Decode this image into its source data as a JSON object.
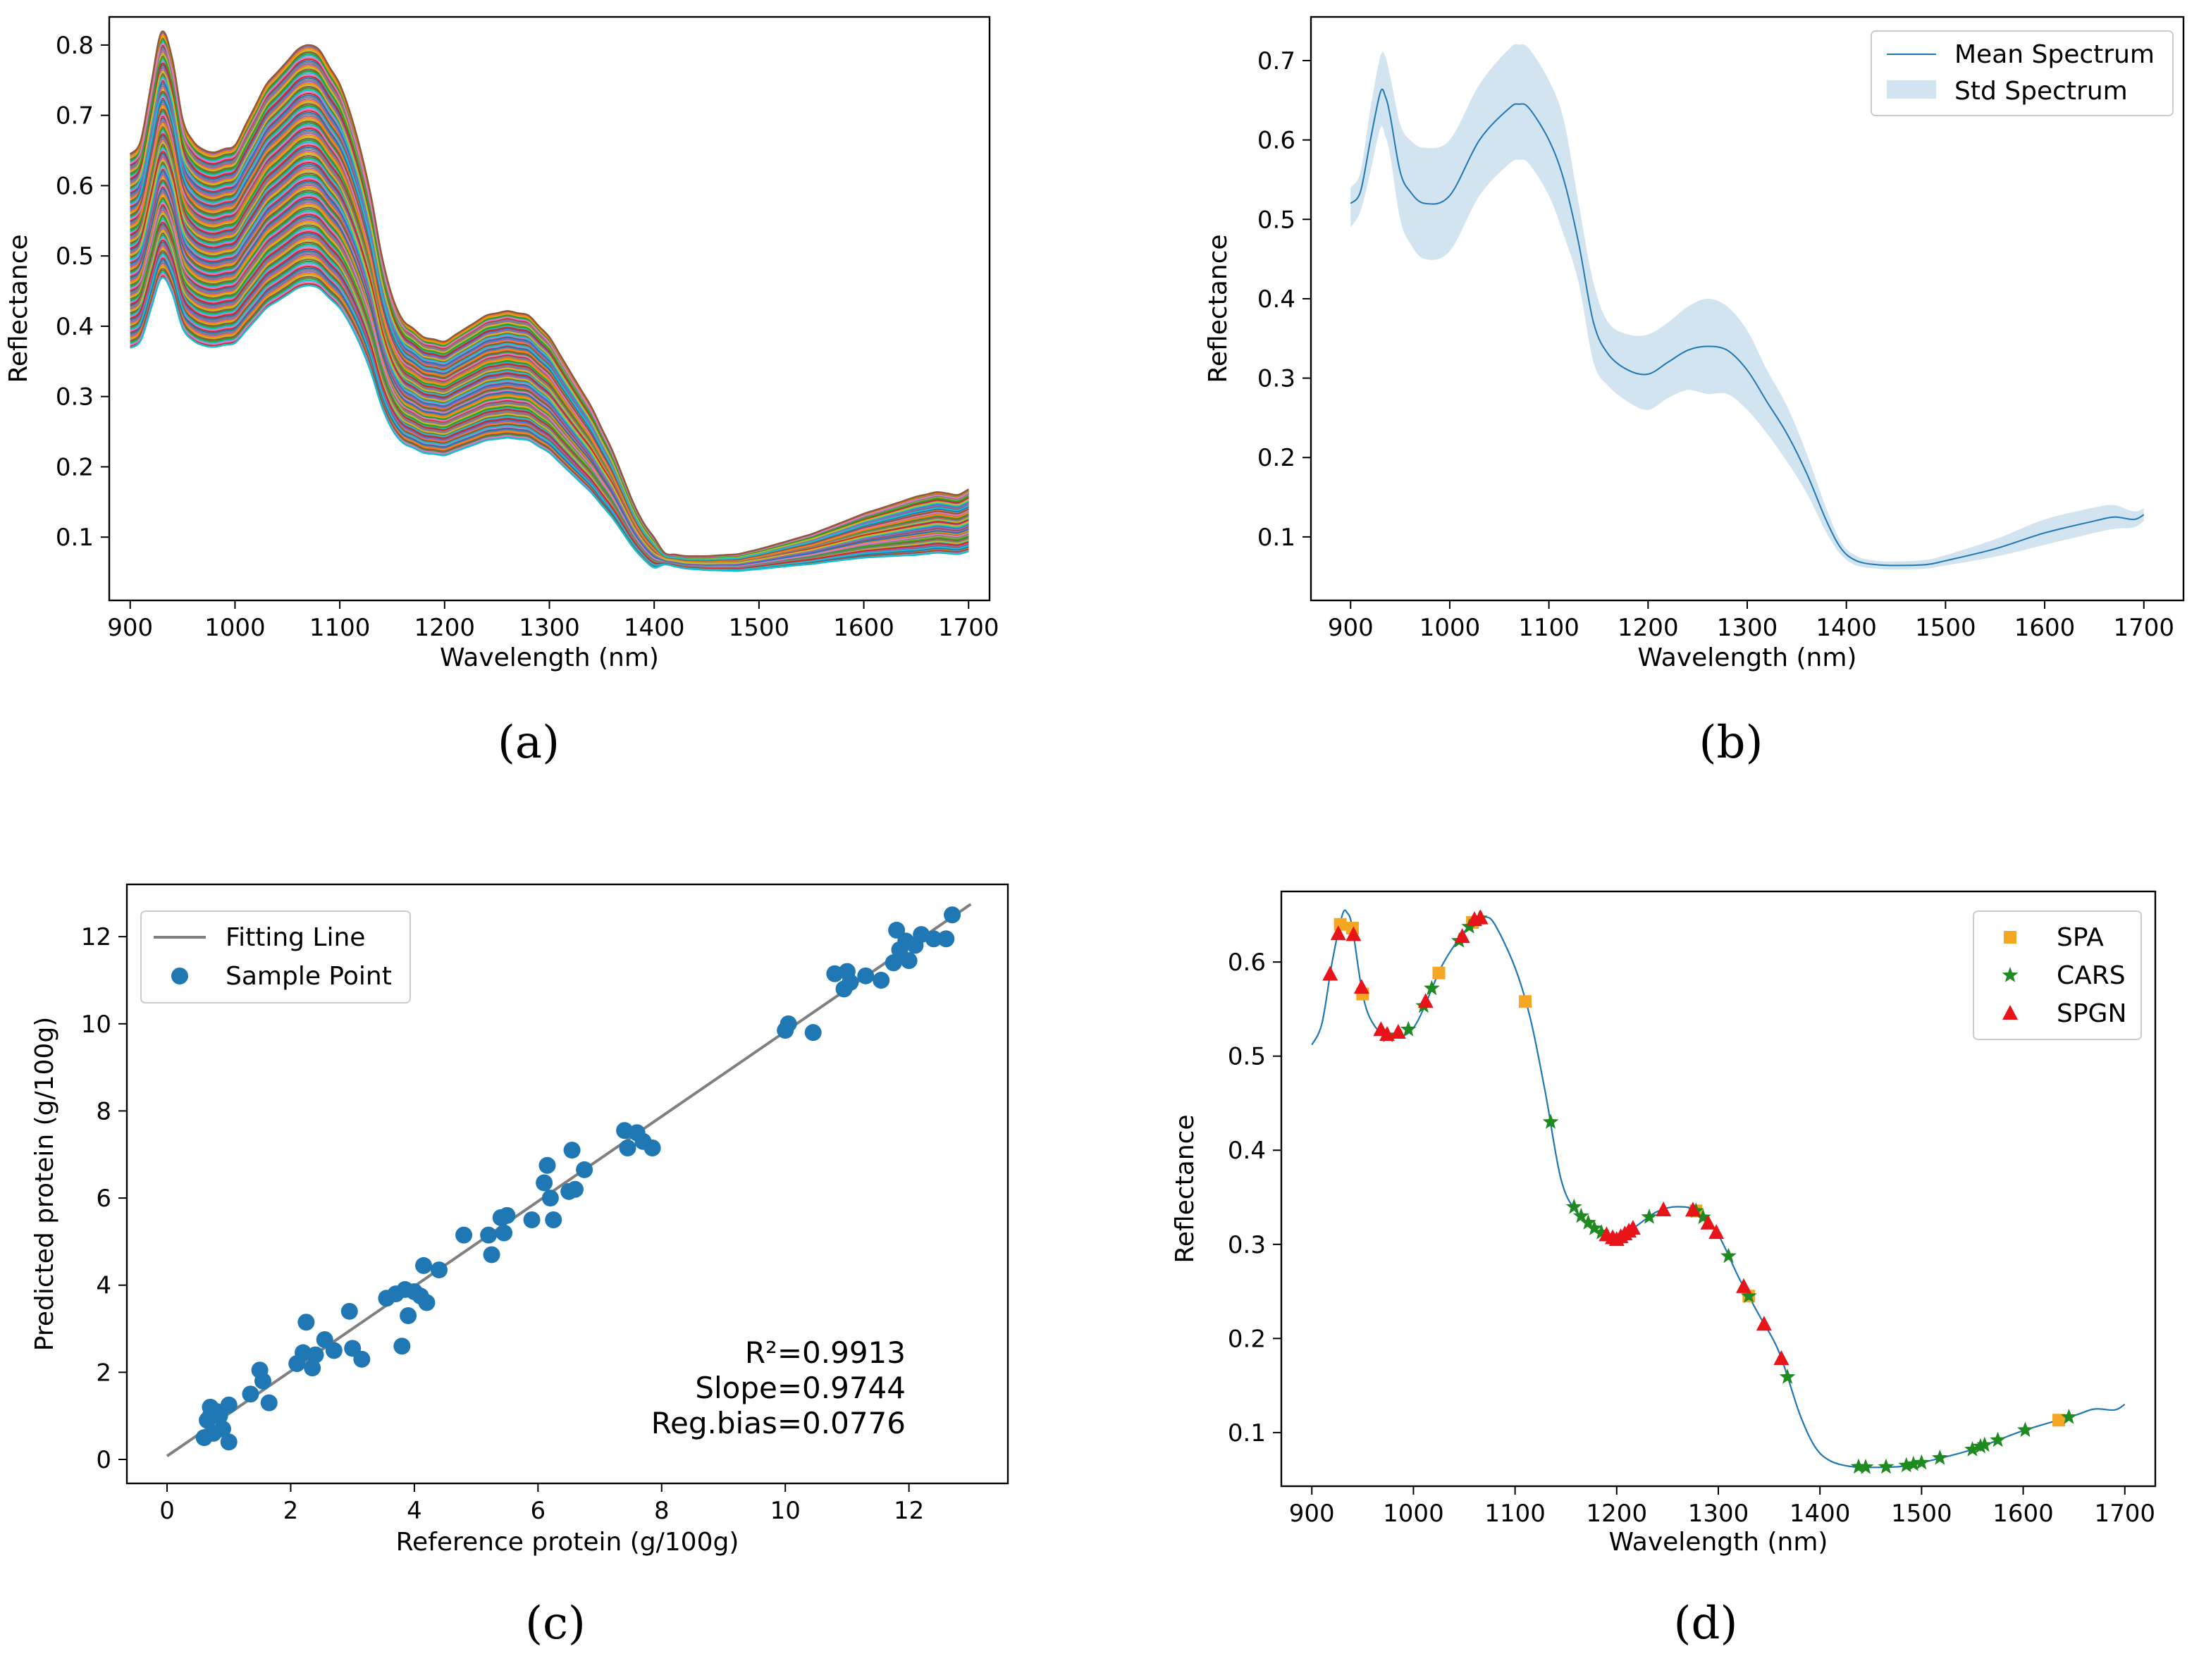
{
  "chart_data": [
    {
      "panel": "(a)",
      "type": "line",
      "xlabel": "Wavelength (nm)",
      "ylabel": "Reflectance",
      "xlim": [
        880,
        1720
      ],
      "ylim": [
        0.01,
        0.84
      ],
      "xticks": [
        900,
        1000,
        1100,
        1200,
        1300,
        1400,
        1500,
        1600,
        1700
      ],
      "yticks": [
        0.1,
        0.2,
        0.3,
        0.4,
        0.5,
        0.6,
        0.7,
        0.8
      ],
      "grid": false,
      "base_spectrum": {
        "x": [
          900,
          910,
          920,
          930,
          935,
          940,
          950,
          960,
          975,
          1000,
          1030,
          1060,
          1070,
          1080,
          1100,
          1115,
          1130,
          1145,
          1160,
          1180,
          1200,
          1220,
          1240,
          1260,
          1280,
          1300,
          1320,
          1340,
          1360,
          1380,
          1395,
          1410,
          1430,
          1450,
          1480,
          1500,
          1550,
          1600,
          1650,
          1670,
          1690,
          1700
        ],
        "y": [
          0.52,
          0.535,
          0.6,
          0.66,
          0.655,
          0.63,
          0.56,
          0.535,
          0.52,
          0.53,
          0.6,
          0.64,
          0.645,
          0.64,
          0.6,
          0.55,
          0.47,
          0.37,
          0.33,
          0.31,
          0.305,
          0.32,
          0.335,
          0.34,
          0.335,
          0.31,
          0.27,
          0.23,
          0.18,
          0.12,
          0.085,
          0.07,
          0.065,
          0.064,
          0.065,
          0.07,
          0.085,
          0.105,
          0.12,
          0.125,
          0.122,
          0.128
        ]
      },
      "curve_count": 140,
      "scale_range": [
        0.71,
        1.24
      ],
      "top_curve_color": "#8c5a3c",
      "bottom_curve_color": "#17becf"
    },
    {
      "panel": "(b)",
      "type": "area",
      "xlabel": "Wavelength (nm)",
      "ylabel": "Reflectance",
      "xlim": [
        860,
        1740
      ],
      "ylim": [
        0.02,
        0.755
      ],
      "xticks": [
        900,
        1000,
        1100,
        1200,
        1300,
        1400,
        1500,
        1600,
        1700
      ],
      "yticks": [
        0.1,
        0.2,
        0.3,
        0.4,
        0.5,
        0.6,
        0.7
      ],
      "legend": {
        "placement": "top-right",
        "entries": [
          "Mean Spectrum",
          "Std Spectrum"
        ]
      },
      "series": [
        {
          "name": "Mean Spectrum",
          "x": [
            900,
            910,
            920,
            930,
            935,
            940,
            950,
            960,
            975,
            1000,
            1030,
            1060,
            1070,
            1080,
            1100,
            1115,
            1130,
            1145,
            1160,
            1180,
            1200,
            1220,
            1240,
            1260,
            1280,
            1300,
            1320,
            1340,
            1360,
            1380,
            1395,
            1410,
            1430,
            1450,
            1480,
            1500,
            1550,
            1600,
            1650,
            1670,
            1690,
            1700
          ],
          "y": [
            0.52,
            0.535,
            0.6,
            0.66,
            0.655,
            0.63,
            0.56,
            0.535,
            0.52,
            0.53,
            0.6,
            0.64,
            0.645,
            0.64,
            0.6,
            0.55,
            0.47,
            0.37,
            0.33,
            0.31,
            0.305,
            0.32,
            0.335,
            0.34,
            0.335,
            0.31,
            0.27,
            0.23,
            0.18,
            0.12,
            0.085,
            0.07,
            0.065,
            0.064,
            0.065,
            0.07,
            0.085,
            0.105,
            0.12,
            0.125,
            0.122,
            0.128
          ]
        },
        {
          "name": "Std Spectrum",
          "upper": [
            0.54,
            0.56,
            0.64,
            0.705,
            0.705,
            0.68,
            0.62,
            0.6,
            0.59,
            0.6,
            0.67,
            0.715,
            0.72,
            0.715,
            0.675,
            0.625,
            0.52,
            0.42,
            0.37,
            0.355,
            0.355,
            0.37,
            0.39,
            0.4,
            0.39,
            0.36,
            0.31,
            0.265,
            0.205,
            0.135,
            0.093,
            0.076,
            0.07,
            0.069,
            0.071,
            0.077,
            0.097,
            0.122,
            0.137,
            0.14,
            0.132,
            0.136
          ],
          "lower": [
            0.49,
            0.51,
            0.56,
            0.615,
            0.605,
            0.58,
            0.5,
            0.47,
            0.45,
            0.46,
            0.53,
            0.57,
            0.575,
            0.57,
            0.53,
            0.48,
            0.42,
            0.32,
            0.29,
            0.27,
            0.26,
            0.275,
            0.285,
            0.28,
            0.28,
            0.26,
            0.23,
            0.195,
            0.155,
            0.105,
            0.077,
            0.064,
            0.06,
            0.059,
            0.06,
            0.064,
            0.075,
            0.09,
            0.105,
            0.11,
            0.112,
            0.12
          ]
        }
      ]
    },
    {
      "panel": "(c)",
      "type": "scatter",
      "xlabel": "Reference protein (g/100g)",
      "ylabel": "Predicted protein (g/100g)",
      "xlim": [
        -0.65,
        13.6
      ],
      "ylim": [
        -0.55,
        13.2
      ],
      "xticks": [
        0,
        2,
        4,
        6,
        8,
        10,
        12
      ],
      "yticks": [
        0,
        2,
        4,
        6,
        8,
        10,
        12
      ],
      "legend": {
        "placement": "top-left",
        "entries": [
          "Fitting Line",
          "Sample Point"
        ]
      },
      "annotations": [
        "R²=0.9913",
        "Slope=0.9744",
        "Reg.bias=0.0776"
      ],
      "fit_line": {
        "x": [
          0,
          13
        ],
        "y": [
          0.0776,
          12.745
        ]
      },
      "series": [
        {
          "name": "Sample Point",
          "x": [
            0.65,
            0.7,
            0.75,
            0.8,
            0.85,
            0.9,
            1.0,
            0.6,
            0.7,
            1.0,
            1.35,
            1.5,
            1.55,
            1.65,
            2.1,
            2.2,
            2.25,
            2.35,
            2.4,
            2.55,
            2.7,
            2.95,
            3.0,
            3.15,
            3.55,
            3.7,
            3.8,
            3.85,
            3.9,
            4.0,
            4.1,
            4.15,
            4.2,
            4.4,
            4.8,
            5.2,
            5.25,
            5.4,
            5.45,
            5.5,
            5.9,
            6.1,
            6.15,
            6.2,
            6.25,
            6.5,
            6.55,
            6.6,
            6.75,
            7.4,
            7.45,
            7.6,
            7.7,
            7.85,
            10.0,
            10.05,
            10.45,
            10.8,
            10.95,
            11.0,
            11.05,
            11.3,
            11.55,
            11.75,
            11.8,
            11.85,
            11.95,
            12.0,
            12.1,
            12.2,
            12.4,
            12.6,
            12.7
          ],
          "y": [
            0.9,
            1.2,
            0.6,
            1.1,
            1.0,
            0.7,
            1.25,
            0.5,
            1.0,
            0.4,
            1.5,
            2.05,
            1.8,
            1.3,
            2.2,
            2.45,
            3.15,
            2.1,
            2.4,
            2.75,
            2.5,
            3.4,
            2.55,
            2.3,
            3.7,
            3.8,
            2.6,
            3.9,
            3.3,
            3.85,
            3.75,
            4.45,
            3.6,
            4.35,
            5.15,
            5.15,
            4.7,
            5.55,
            5.2,
            5.6,
            5.5,
            6.35,
            6.75,
            6.0,
            5.5,
            6.15,
            7.1,
            6.2,
            6.65,
            7.55,
            7.15,
            7.5,
            7.3,
            7.15,
            9.85,
            10.0,
            9.8,
            11.15,
            10.8,
            11.2,
            10.95,
            11.1,
            11.0,
            11.4,
            12.15,
            11.7,
            11.9,
            11.45,
            11.8,
            12.05,
            11.95,
            11.95,
            12.5
          ]
        }
      ]
    },
    {
      "panel": "(d)",
      "type": "line",
      "xlabel": "Wavelength (nm)",
      "ylabel": "Reflectance",
      "xlim": [
        870,
        1730
      ],
      "ylim": [
        0.043,
        0.675
      ],
      "xticks": [
        900,
        1000,
        1100,
        1200,
        1300,
        1400,
        1500,
        1600,
        1700
      ],
      "yticks": [
        0.1,
        0.2,
        0.3,
        0.4,
        0.5,
        0.6
      ],
      "legend": {
        "placement": "top-right",
        "entries": [
          "SPA",
          "CARS",
          "SPGN"
        ]
      },
      "mean_spectrum": {
        "x": [
          900,
          910,
          920,
          930,
          935,
          940,
          950,
          960,
          975,
          1000,
          1030,
          1060,
          1070,
          1080,
          1100,
          1115,
          1130,
          1145,
          1160,
          1180,
          1200,
          1220,
          1240,
          1260,
          1280,
          1300,
          1320,
          1340,
          1360,
          1380,
          1395,
          1410,
          1430,
          1450,
          1480,
          1500,
          1550,
          1600,
          1650,
          1670,
          1690,
          1700
        ],
        "y": [
          0.512,
          0.535,
          0.6,
          0.65,
          0.652,
          0.636,
          0.566,
          0.535,
          0.522,
          0.53,
          0.6,
          0.645,
          0.648,
          0.64,
          0.594,
          0.54,
          0.46,
          0.37,
          0.335,
          0.315,
          0.305,
          0.32,
          0.335,
          0.34,
          0.335,
          0.31,
          0.265,
          0.225,
          0.185,
          0.12,
          0.085,
          0.07,
          0.064,
          0.063,
          0.064,
          0.068,
          0.082,
          0.102,
          0.118,
          0.125,
          0.124,
          0.13
        ]
      },
      "series": [
        {
          "name": "SPA",
          "color": "#f5a623",
          "marker": "square",
          "x": [
            928,
            940,
            950,
            1025,
            1058,
            1110,
            1278,
            1330,
            1635
          ]
        },
        {
          "name": "CARS",
          "color": "#1f8a1f",
          "marker": "star",
          "x": [
            975,
            995,
            1010,
            1018,
            1045,
            1055,
            1065,
            1135,
            1158,
            1165,
            1172,
            1178,
            1185,
            1232,
            1278,
            1285,
            1310,
            1330,
            1368,
            1438,
            1445,
            1465,
            1485,
            1492,
            1500,
            1518,
            1550,
            1558,
            1562,
            1575,
            1602,
            1645
          ]
        },
        {
          "name": "SPGN",
          "color": "#e8141a",
          "marker": "triangle",
          "x": [
            918,
            926,
            941,
            949,
            968,
            974,
            985,
            1012,
            1048,
            1060,
            1066,
            1190,
            1196,
            1200,
            1204,
            1208,
            1212,
            1216,
            1246,
            1275,
            1290,
            1298,
            1325,
            1345,
            1362
          ]
        }
      ]
    }
  ]
}
